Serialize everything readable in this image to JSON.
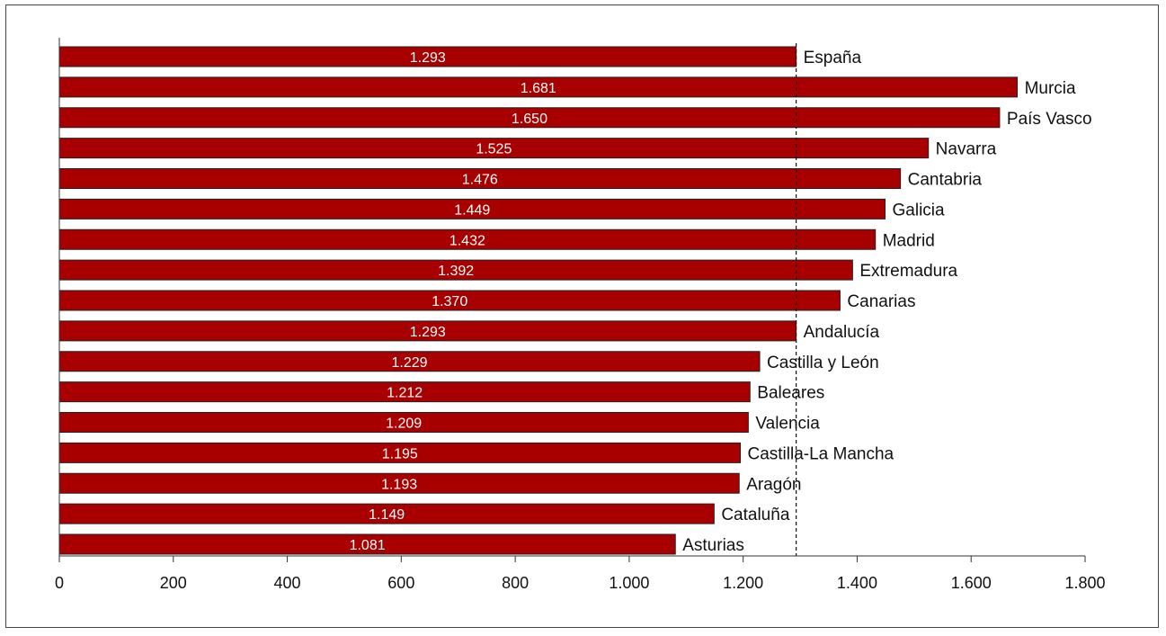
{
  "chart_data": {
    "type": "bar",
    "orientation": "horizontal",
    "categories": [
      "España",
      "Murcia",
      "País Vasco",
      "Navarra",
      "Cantabria",
      "Galicia",
      "Madrid",
      "Extremadura",
      "Canarias",
      "Andalucía",
      "Castilla y León",
      "Baleares",
      "Valencia",
      "Castilla-La Mancha",
      "Aragón",
      "Cataluña",
      "Asturias"
    ],
    "values": [
      1293,
      1681,
      1650,
      1525,
      1476,
      1449,
      1432,
      1392,
      1370,
      1293,
      1229,
      1212,
      1209,
      1195,
      1193,
      1149,
      1081
    ],
    "value_labels": [
      "1.293",
      "1.681",
      "1.650",
      "1.525",
      "1.476",
      "1.449",
      "1.432",
      "1.392",
      "1.370",
      "1.293",
      "1.229",
      "1.212",
      "1.209",
      "1.195",
      "1.193",
      "1.149",
      "1.081"
    ],
    "xlim": [
      0,
      1800
    ],
    "xticks": [
      0,
      200,
      400,
      600,
      800,
      1000,
      1200,
      1400,
      1600,
      1800
    ],
    "xtick_labels": [
      "0",
      "200",
      "400",
      "600",
      "800",
      "1.000",
      "1.200",
      "1.400",
      "1.600",
      "1.800"
    ],
    "reference_line": {
      "value": 1293,
      "style": "dashed"
    },
    "bar_color": "#a80000",
    "grid": false,
    "title": "",
    "xlabel": "",
    "ylabel": ""
  }
}
